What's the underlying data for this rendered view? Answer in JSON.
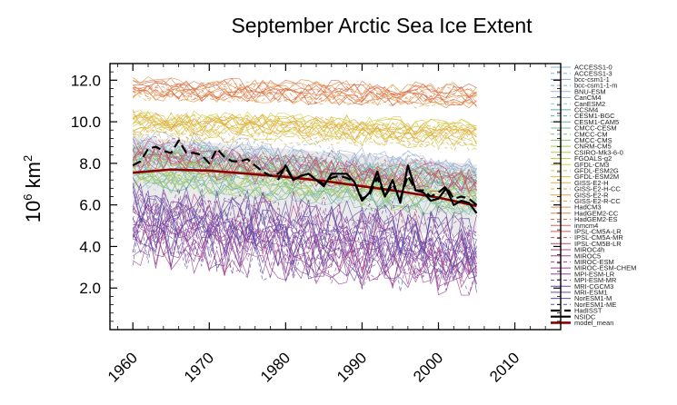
{
  "chart_data": {
    "type": "line",
    "title": "September Arctic Sea Ice Extent",
    "ylabel": "10",
    "ylabel_exp": "6",
    "ylabel_unit": " km",
    "ylabel_unit_exp": "2",
    "xlim": [
      1957,
      2016
    ],
    "ylim": [
      0.0,
      12.8
    ],
    "x_ticks": [
      1960,
      1970,
      1980,
      1990,
      2000,
      2010
    ],
    "x_tick_labels": [
      "1960",
      "1970",
      "1980",
      "1990",
      "2000",
      "2010"
    ],
    "y_ticks": [
      2.0,
      4.0,
      6.0,
      8.0,
      10.0,
      12.0
    ],
    "y_tick_labels": [
      "2.0",
      "4.0",
      "6.0",
      "8.0",
      "10.0",
      "12.0"
    ],
    "legend_position": "right",
    "legend": [
      {
        "name": "ACCESS1-0",
        "color": "#7fb8d8",
        "dash": "solid"
      },
      {
        "name": "ACCESS1-3",
        "color": "#7fb8d8",
        "dash": "dash"
      },
      {
        "name": "bcc-csm1-1",
        "color": "#8fa3c4",
        "dash": "solid"
      },
      {
        "name": "bcc-csm1-1-m",
        "color": "#8fa3c4",
        "dash": "dash"
      },
      {
        "name": "BNU-ESM",
        "color": "#a9b4d9",
        "dash": "solid"
      },
      {
        "name": "CanCM4",
        "color": "#9ac2d6",
        "dash": "solid"
      },
      {
        "name": "CanESM2",
        "color": "#9ac2d6",
        "dash": "dash"
      },
      {
        "name": "CCSM4",
        "color": "#5fa8a8",
        "dash": "solid"
      },
      {
        "name": "CESM1-BGC",
        "color": "#5fa8a8",
        "dash": "dash"
      },
      {
        "name": "CESM1-CAM5",
        "color": "#6cb49a",
        "dash": "solid"
      },
      {
        "name": "CMCC-CESM",
        "color": "#7bbd82",
        "dash": "solid"
      },
      {
        "name": "CMCC-CM",
        "color": "#7bbd82",
        "dash": "dash"
      },
      {
        "name": "CMCC-CMS",
        "color": "#8cc46c",
        "dash": "solid"
      },
      {
        "name": "CNRM-CM5",
        "color": "#9dca5a",
        "dash": "solid"
      },
      {
        "name": "CSIRO-Mk3-6-0",
        "color": "#b0ce4c",
        "dash": "solid"
      },
      {
        "name": "FGOALS-g2",
        "color": "#c2d144",
        "dash": "solid"
      },
      {
        "name": "GFDL-CM3",
        "color": "#d1d040",
        "dash": "solid"
      },
      {
        "name": "GFDL-ESM2G",
        "color": "#d8c640",
        "dash": "dash"
      },
      {
        "name": "GFDL-ESM2M",
        "color": "#ddbb40",
        "dash": "solid"
      },
      {
        "name": "GISS-E2-H",
        "color": "#e1ae40",
        "dash": "solid"
      },
      {
        "name": "GISS-E2-H-CC",
        "color": "#e1ae40",
        "dash": "dash"
      },
      {
        "name": "GISS-E2-R",
        "color": "#e3a040",
        "dash": "solid"
      },
      {
        "name": "GISS-E2-R-CC",
        "color": "#e3a040",
        "dash": "dash"
      },
      {
        "name": "HadCM3",
        "color": "#e39242",
        "dash": "solid"
      },
      {
        "name": "HadGEM2-CC",
        "color": "#e08346",
        "dash": "solid"
      },
      {
        "name": "HadGEM2-ES",
        "color": "#dc744a",
        "dash": "dash"
      },
      {
        "name": "inmcm4",
        "color": "#d7664f",
        "dash": "solid"
      },
      {
        "name": "IPSL-CM5A-LR",
        "color": "#d05a58",
        "dash": "solid"
      },
      {
        "name": "IPSL-CM5A-MR",
        "color": "#c85062",
        "dash": "dash"
      },
      {
        "name": "IPSL-CM5B-LR",
        "color": "#bf486e",
        "dash": "solid"
      },
      {
        "name": "MIROC4h",
        "color": "#b5437a",
        "dash": "solid"
      },
      {
        "name": "MIROC5",
        "color": "#aa4086",
        "dash": "solid"
      },
      {
        "name": "MIROC-ESM",
        "color": "#9f3f90",
        "dash": "dash"
      },
      {
        "name": "MIROC-ESM-CHEM",
        "color": "#943f98",
        "dash": "solid"
      },
      {
        "name": "MPI-ESM-LR",
        "color": "#88409e",
        "dash": "solid"
      },
      {
        "name": "MPI-ESM-MR",
        "color": "#7d42a2",
        "dash": "dash"
      },
      {
        "name": "MRI-CGCM3",
        "color": "#7244a4",
        "dash": "solid"
      },
      {
        "name": "MRI-ESM1",
        "color": "#6847a4",
        "dash": "solid"
      },
      {
        "name": "NorESM1-M",
        "color": "#5e4aa2",
        "dash": "solid"
      },
      {
        "name": "NorESM1-ME",
        "color": "#554c9e",
        "dash": "dash"
      },
      {
        "name": "HadISST",
        "color": "#000000",
        "dash": "longdash",
        "width": 2.2
      },
      {
        "name": "NSIDC",
        "color": "#000000",
        "dash": "solid",
        "width": 2.2
      },
      {
        "name": "model_mean",
        "color": "#8b0000",
        "dash": "solid",
        "width": 2.6
      }
    ],
    "series": [
      {
        "name": "NSIDC",
        "color": "#000000",
        "x": [
          1979,
          1980,
          1981,
          1982,
          1983,
          1984,
          1985,
          1986,
          1987,
          1988,
          1989,
          1990,
          1991,
          1992,
          1993,
          1994,
          1995,
          1996,
          1997,
          1998,
          1999,
          2000,
          2001,
          2002,
          2003,
          2004,
          2005
        ],
        "values": [
          7.2,
          7.9,
          7.2,
          7.4,
          7.5,
          7.2,
          6.9,
          7.5,
          7.5,
          7.5,
          7.1,
          6.2,
          6.6,
          7.6,
          6.4,
          7.2,
          6.1,
          7.9,
          6.7,
          6.6,
          6.2,
          6.3,
          6.8,
          6.0,
          6.2,
          6.1,
          5.6
        ]
      },
      {
        "name": "HadISST",
        "color": "#000000",
        "dash": "longdash",
        "x": [
          1960,
          1961,
          1962,
          1963,
          1964,
          1965,
          1966,
          1967,
          1968,
          1969,
          1970,
          1971,
          1972,
          1973,
          1974,
          1975,
          1976,
          1977,
          1978,
          1979,
          1980,
          1981,
          1982,
          1983,
          1984,
          1985,
          1986,
          1987,
          1988,
          1989,
          1990,
          1991,
          1992,
          1993,
          1994,
          1995,
          1996,
          1997,
          1998,
          1999,
          2000,
          2001,
          2002,
          2003,
          2004,
          2005
        ],
        "values": [
          7.9,
          8.1,
          8.7,
          8.8,
          8.6,
          8.5,
          9.1,
          8.5,
          8.5,
          8.4,
          8.0,
          8.7,
          8.3,
          8.1,
          8.1,
          8.2,
          7.9,
          7.6,
          7.4,
          7.5,
          7.8,
          7.2,
          7.4,
          7.5,
          7.2,
          7.0,
          7.3,
          7.4,
          7.3,
          7.1,
          6.3,
          6.5,
          7.3,
          6.4,
          7.0,
          6.3,
          7.4,
          6.7,
          6.7,
          6.4,
          6.6,
          6.9,
          6.3,
          6.4,
          6.3,
          6.0
        ]
      },
      {
        "name": "model_mean",
        "color": "#8b0000",
        "x": [
          1960,
          1965,
          1970,
          1975,
          1980,
          1985,
          1990,
          1995,
          2000,
          2005
        ],
        "values": [
          7.55,
          7.7,
          7.65,
          7.5,
          7.35,
          7.15,
          6.9,
          6.65,
          6.35,
          5.95
        ]
      }
    ]
  }
}
